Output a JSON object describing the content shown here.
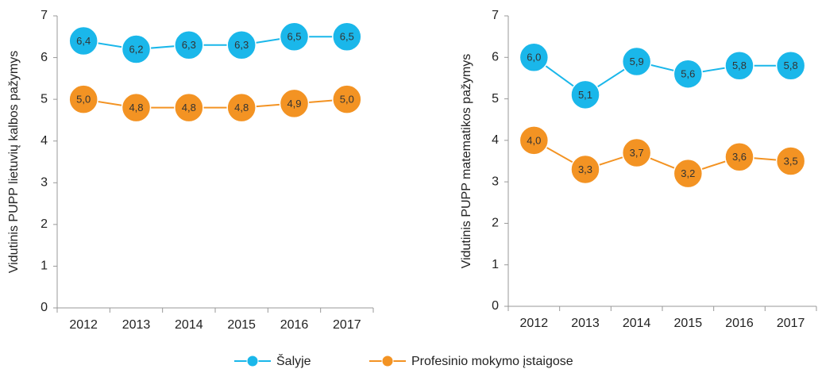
{
  "chart_data": [
    {
      "type": "line",
      "y_label": "Vidutinis PUPP lietuvių kalbos pažymys",
      "categories": [
        "2012",
        "2013",
        "2014",
        "2015",
        "2016",
        "2017"
      ],
      "series": [
        {
          "name": "Šalyje",
          "color": "#1ab7ea",
          "values": [
            6.4,
            6.2,
            6.3,
            6.3,
            6.5,
            6.5
          ],
          "value_labels": [
            "6,4",
            "6,2",
            "6,3",
            "6,3",
            "6,5",
            "6,5"
          ]
        },
        {
          "name": "Profesinio mokymo įstaigose",
          "color": "#f39323",
          "values": [
            5.0,
            4.8,
            4.8,
            4.8,
            4.9,
            5.0
          ],
          "value_labels": [
            "5,0",
            "4,8",
            "4,8",
            "4,8",
            "4,9",
            "5,0"
          ]
        }
      ],
      "ylim": [
        0,
        7
      ],
      "yticks": [
        0,
        1,
        2,
        3,
        4,
        5,
        6,
        7
      ]
    },
    {
      "type": "line",
      "y_label": "Vidutinis PUPP matematikos pažymys",
      "categories": [
        "2012",
        "2013",
        "2014",
        "2015",
        "2016",
        "2017"
      ],
      "series": [
        {
          "color": "#1ab7ea",
          "values": [
            6.0,
            5.1,
            5.9,
            5.6,
            5.8,
            5.8
          ],
          "value_labels": [
            "6,0",
            "5,1",
            "5,9",
            "5,6",
            "5,8",
            "5,8"
          ]
        },
        {
          "color": "#f39323",
          "values": [
            4.0,
            3.3,
            3.7,
            3.2,
            3.6,
            3.5
          ],
          "value_labels": [
            "4,0",
            "3,3",
            "3,7",
            "3,2",
            "3,6",
            "3,5"
          ]
        }
      ],
      "ylim": [
        0,
        7
      ],
      "yticks": [
        0,
        1,
        2,
        3,
        4,
        5,
        6,
        7
      ]
    }
  ]
}
